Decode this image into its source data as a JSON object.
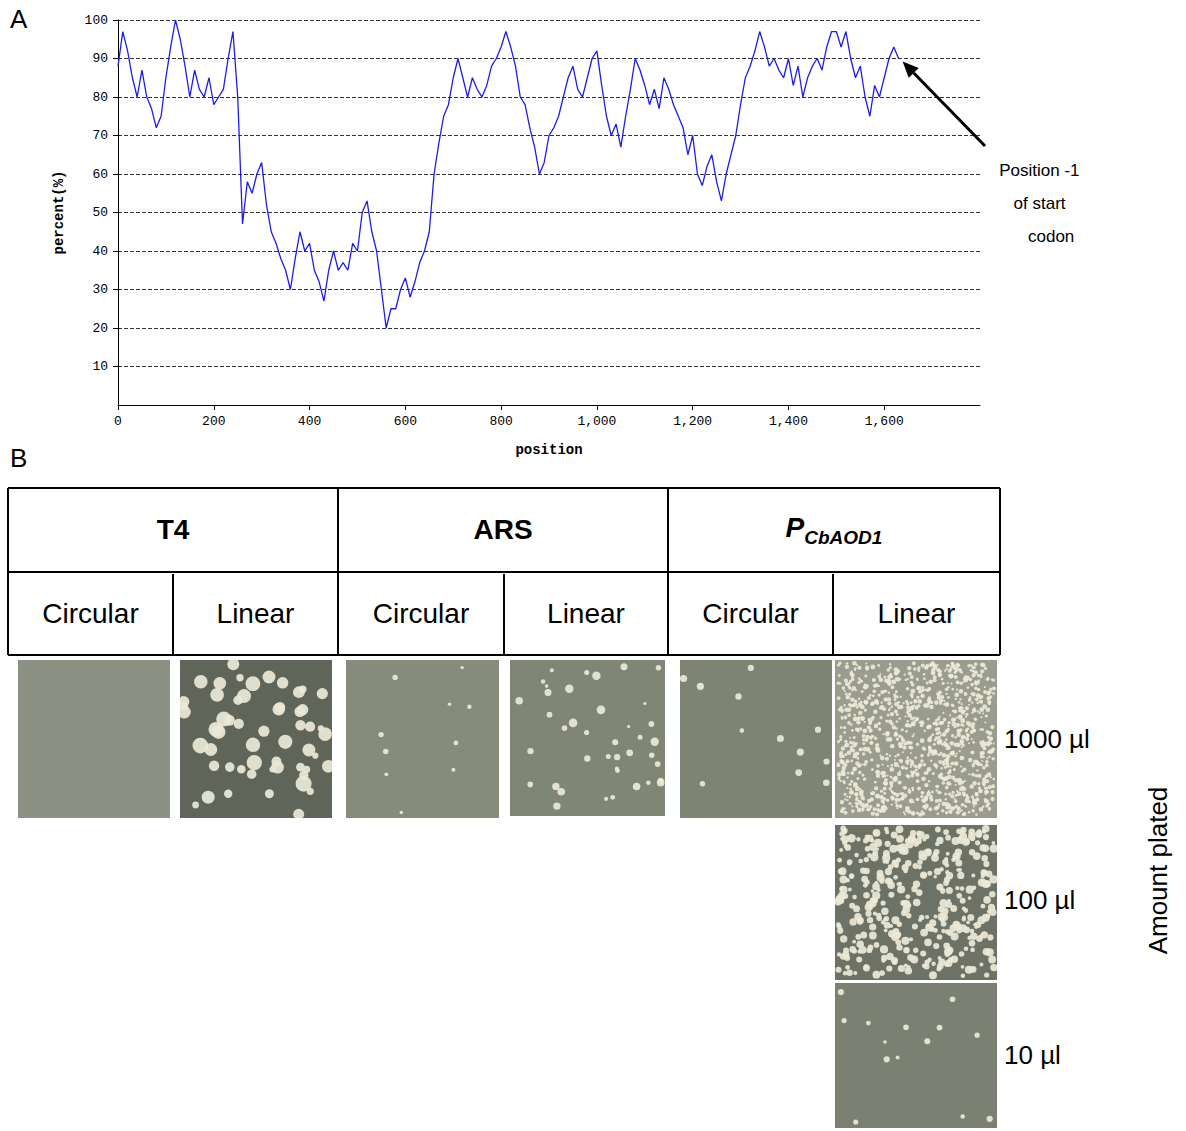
{
  "chart_data": {
    "type": "line",
    "panel": "A",
    "x": [
      0,
      10,
      20,
      30,
      40,
      50,
      60,
      70,
      80,
      90,
      100,
      110,
      120,
      130,
      140,
      150,
      160,
      170,
      180,
      190,
      200,
      210,
      220,
      230,
      240,
      250,
      260,
      270,
      280,
      290,
      300,
      310,
      320,
      330,
      340,
      350,
      360,
      370,
      380,
      390,
      400,
      410,
      420,
      430,
      440,
      450,
      460,
      470,
      480,
      490,
      500,
      510,
      520,
      530,
      540,
      550,
      560,
      570,
      580,
      590,
      600,
      610,
      620,
      630,
      640,
      650,
      660,
      670,
      680,
      690,
      700,
      710,
      720,
      730,
      740,
      750,
      760,
      770,
      780,
      790,
      800,
      810,
      820,
      830,
      840,
      850,
      860,
      870,
      880,
      890,
      900,
      910,
      920,
      930,
      940,
      950,
      960,
      970,
      980,
      990,
      1000,
      1010,
      1020,
      1030,
      1040,
      1050,
      1060,
      1070,
      1080,
      1090,
      1100,
      1110,
      1120,
      1130,
      1140,
      1150,
      1160,
      1170,
      1180,
      1190,
      1200,
      1210,
      1220,
      1230,
      1240,
      1250,
      1260,
      1270,
      1280,
      1290,
      1300,
      1310,
      1320,
      1330,
      1340,
      1350,
      1360,
      1370,
      1380,
      1390,
      1400,
      1410,
      1420,
      1430,
      1440,
      1450,
      1460,
      1470,
      1480,
      1490,
      1500,
      1510,
      1520,
      1530,
      1540,
      1550,
      1560,
      1570,
      1580,
      1590,
      1600,
      1610,
      1620,
      1630
    ],
    "values": [
      88,
      97,
      92,
      85,
      80,
      87,
      80,
      77,
      72,
      75,
      85,
      93,
      100,
      95,
      88,
      80,
      87,
      82,
      80,
      85,
      78,
      80,
      82,
      90,
      97,
      80,
      47,
      58,
      55,
      60,
      63,
      52,
      45,
      42,
      38,
      35,
      30,
      38,
      45,
      40,
      42,
      35,
      32,
      27,
      35,
      40,
      35,
      37,
      35,
      42,
      40,
      50,
      53,
      45,
      40,
      30,
      20,
      25,
      25,
      30,
      33,
      28,
      32,
      37,
      40,
      45,
      60,
      68,
      75,
      78,
      85,
      90,
      85,
      80,
      85,
      82,
      80,
      83,
      88,
      90,
      93,
      97,
      93,
      88,
      80,
      78,
      72,
      67,
      60,
      63,
      70,
      72,
      75,
      80,
      85,
      88,
      82,
      80,
      85,
      90,
      92,
      83,
      75,
      70,
      73,
      67,
      75,
      82,
      90,
      87,
      83,
      78,
      82,
      77,
      85,
      82,
      78,
      75,
      72,
      65,
      70,
      60,
      57,
      62,
      65,
      58,
      53,
      60,
      65,
      70,
      78,
      85,
      88,
      92,
      97,
      93,
      88,
      90,
      87,
      85,
      90,
      83,
      88,
      80,
      85,
      88,
      90,
      87,
      93,
      97,
      97,
      93,
      97,
      90,
      85,
      88,
      80,
      75,
      83,
      80,
      85,
      90,
      93,
      90
    ],
    "color": "#1c1cf0",
    "xlabel": "position",
    "ylabel": "percent(%)",
    "xlim": [
      0,
      1800
    ],
    "xticks": [
      0,
      200,
      400,
      600,
      800,
      1000,
      1200,
      1400,
      1600
    ],
    "ylim": [
      0,
      100
    ],
    "yticks": [
      10,
      20,
      30,
      40,
      50,
      60,
      70,
      80,
      90,
      100
    ],
    "grid": true,
    "annotations": [
      {
        "text": "Position -1 of start codon",
        "x": 1630,
        "y": 90
      }
    ]
  },
  "panel_b": {
    "panel": "B",
    "columns": [
      {
        "label": {
          "main": "T4"
        },
        "forms": [
          "Circular",
          "Linear"
        ]
      },
      {
        "label": {
          "main": "ARS"
        },
        "forms": [
          "Circular",
          "Linear"
        ]
      },
      {
        "label": {
          "main": "P",
          "sub": "CbAOD1"
        },
        "forms": [
          "Circular",
          "Linear"
        ]
      }
    ],
    "amounts": [
      "1000 µl",
      "100 µl",
      "10 µl"
    ],
    "amounts_title": "Amount plated"
  }
}
